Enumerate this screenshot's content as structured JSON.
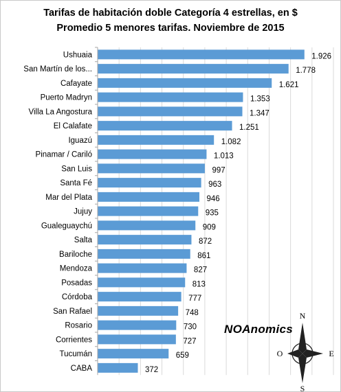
{
  "chart_data": {
    "type": "bar",
    "orientation": "horizontal",
    "title": "Tarifas de habitación doble Categoría 4 estrellas, en $",
    "subtitle": "Promedio 5 menores tarifas. Noviembre de 2015",
    "categories": [
      "Ushuaia",
      "San Martín de los...",
      "Cafayate",
      "Puerto Madryn",
      "Villa La Angostura",
      "El Calafate",
      "Iguazú",
      "Pinamar / Cariló",
      "San Luis",
      "Santa Fé",
      "Mar del Plata",
      "Jujuy",
      "Gualeguaychú",
      "Salta",
      "Bariloche",
      "Mendoza",
      "Posadas",
      "Córdoba",
      "San Rafael",
      "Rosario",
      "Corrientes",
      "Tucumán",
      "CABA"
    ],
    "values": [
      1926,
      1778,
      1621,
      1353,
      1347,
      1251,
      1082,
      1013,
      997,
      963,
      946,
      935,
      909,
      872,
      861,
      827,
      813,
      777,
      748,
      730,
      727,
      659,
      372
    ],
    "value_labels": [
      "1.926",
      "1.778",
      "1.621",
      "1.353",
      "1.347",
      "1.251",
      "1.082",
      "1.013",
      "997",
      "963",
      "946",
      "935",
      "909",
      "872",
      "861",
      "827",
      "813",
      "777",
      "748",
      "730",
      "727",
      "659",
      "372"
    ],
    "xlim": [
      0,
      2200
    ],
    "grid": true,
    "bar_color": "#5b9bd5"
  },
  "branding": {
    "text": "NOAnomics",
    "compass": {
      "north": "N",
      "south": "S",
      "east": "E",
      "west": "O"
    }
  },
  "colors": {
    "bar": "#5b9bd5",
    "grid": "#d9d9d9",
    "text": "#000000"
  }
}
